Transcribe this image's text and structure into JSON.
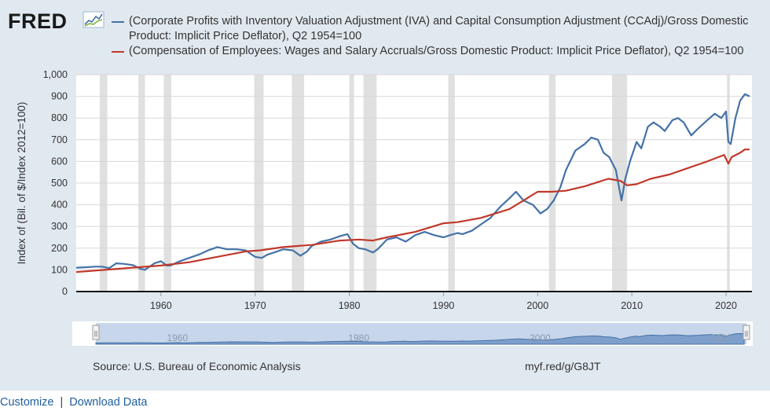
{
  "app": {
    "logo_text": "FRED",
    "source_text": "Source: U.S. Bureau of Economic Analysis",
    "short_link": "myf.red/g/G8JT",
    "links": [
      "Customize",
      "Download Data"
    ],
    "separator": "|"
  },
  "colors": {
    "series1": "#4572a7",
    "series2": "#c0392b",
    "recession": "#e0e0e0",
    "frame": "#e1e9f0",
    "navigator": "#4572a7"
  },
  "chart_data": {
    "type": "line",
    "title": "",
    "xlabel": "",
    "ylabel": "Index of (Bil. of $/Index 2012=100)",
    "xlim": [
      1951.0,
      2022.75
    ],
    "ylim": [
      0,
      1000
    ],
    "y_ticks": [
      0,
      100,
      200,
      300,
      400,
      500,
      600,
      700,
      800,
      900,
      1000
    ],
    "y_tick_labels": [
      "0",
      "100",
      "200",
      "300",
      "400",
      "500",
      "600",
      "700",
      "800",
      "900",
      "1,000"
    ],
    "x_ticks": [
      1960,
      1970,
      1980,
      1990,
      2000,
      2010,
      2020
    ],
    "x_tick_labels": [
      "1960",
      "1970",
      "1980",
      "1990",
      "2000",
      "2010",
      "2020"
    ],
    "recessions": [
      [
        1953.5,
        1954.3
      ],
      [
        1957.6,
        1958.3
      ],
      [
        1960.3,
        1961.1
      ],
      [
        1969.9,
        1970.9
      ],
      [
        1973.9,
        1975.2
      ],
      [
        1980.0,
        1980.5
      ],
      [
        1981.5,
        1982.9
      ],
      [
        1990.5,
        1991.2
      ],
      [
        2001.2,
        2001.9
      ],
      [
        2007.9,
        2009.5
      ],
      [
        2020.1,
        2020.4
      ]
    ],
    "series": [
      {
        "name": "(Corporate Profits with Inventory Valuation Adjustment (IVA) and Capital Consumption Adjustment (CCAdj)/Gross Domestic Product: Implicit Price Deflator), Q2 1954=100",
        "legend_line1": "(Corporate Profits with Inventory Valuation Adjustment (IVA) and Capital Consumption Adjustment (CCAdj)/Gross Domestic",
        "legend_line2": "Product: Implicit Price Deflator), Q2 1954=100",
        "x": [
          1951.0,
          1952.0,
          1953.0,
          1953.75,
          1954.5,
          1955.25,
          1956.0,
          1957.0,
          1957.8,
          1958.3,
          1959.3,
          1960.0,
          1960.6,
          1961.0,
          1962.0,
          1963.0,
          1964.0,
          1965.0,
          1966.0,
          1967.0,
          1968.0,
          1969.0,
          1970.0,
          1970.7,
          1971.3,
          1972.0,
          1973.0,
          1974.0,
          1974.8,
          1975.5,
          1976.0,
          1977.0,
          1978.0,
          1979.0,
          1979.8,
          1980.4,
          1981.0,
          1981.7,
          1982.5,
          1983.0,
          1984.0,
          1985.0,
          1986.0,
          1987.0,
          1988.0,
          1989.0,
          1990.0,
          1990.7,
          1991.5,
          1992.0,
          1993.0,
          1994.0,
          1995.0,
          1996.0,
          1997.0,
          1997.7,
          1998.5,
          1999.5,
          2000.3,
          2001.0,
          2001.7,
          2002.4,
          2003.0,
          2004.0,
          2005.0,
          2005.7,
          2006.4,
          2007.0,
          2007.6,
          2008.3,
          2008.9,
          2009.3,
          2009.8,
          2010.5,
          2011.0,
          2011.7,
          2012.3,
          2013.0,
          2013.5,
          2014.3,
          2014.9,
          2015.5,
          2016.3,
          2017.0,
          2018.0,
          2018.8,
          2019.5,
          2020.0,
          2020.25,
          2020.5,
          2021.0,
          2021.5,
          2022.0,
          2022.5
        ],
        "values": [
          110,
          112,
          115,
          115,
          108,
          130,
          128,
          122,
          105,
          100,
          130,
          140,
          120,
          120,
          140,
          155,
          170,
          190,
          205,
          195,
          195,
          190,
          160,
          155,
          170,
          180,
          195,
          190,
          165,
          185,
          210,
          230,
          240,
          255,
          265,
          220,
          200,
          195,
          180,
          195,
          240,
          250,
          230,
          260,
          275,
          260,
          250,
          260,
          270,
          265,
          280,
          310,
          340,
          390,
          430,
          460,
          420,
          400,
          360,
          380,
          420,
          480,
          560,
          650,
          680,
          710,
          700,
          640,
          620,
          560,
          420,
          520,
          600,
          690,
          660,
          760,
          780,
          760,
          740,
          790,
          800,
          780,
          720,
          750,
          790,
          820,
          800,
          830,
          690,
          680,
          800,
          880,
          910,
          900
        ]
      },
      {
        "name": "(Compensation of Employees: Wages and Salary Accruals/Gross Domestic Product: Implicit Price Deflator), Q2 1954=100",
        "legend_line1": "(Compensation of Employees: Wages and Salary Accruals/Gross Domestic Product: Implicit Price Deflator), Q2 1954=100",
        "x": [
          1951.0,
          1954.0,
          1957.0,
          1960.0,
          1963.0,
          1966.0,
          1969.0,
          1970.5,
          1973.0,
          1974.5,
          1976.0,
          1979.0,
          1981.0,
          1982.5,
          1984.0,
          1987.0,
          1990.0,
          1991.5,
          1994.0,
          1997.0,
          2000.0,
          2001.5,
          2003.0,
          2005.0,
          2007.5,
          2008.8,
          2009.5,
          2010.5,
          2012.0,
          2014.0,
          2016.0,
          2018.0,
          2019.8,
          2020.25,
          2020.6,
          2021.5,
          2022.0,
          2022.5
        ],
        "values": [
          90,
          100,
          110,
          120,
          135,
          160,
          185,
          190,
          205,
          210,
          215,
          235,
          240,
          235,
          250,
          275,
          315,
          320,
          340,
          380,
          460,
          460,
          465,
          485,
          520,
          510,
          490,
          495,
          520,
          540,
          570,
          600,
          630,
          590,
          620,
          640,
          655,
          655
        ]
      }
    ]
  },
  "navigator": {
    "labels": [
      "1960",
      "1980",
      "2000",
      "2020"
    ],
    "label_years": [
      1960,
      1980,
      2000,
      2020
    ],
    "handle_left": "||",
    "handle_right": "||"
  }
}
